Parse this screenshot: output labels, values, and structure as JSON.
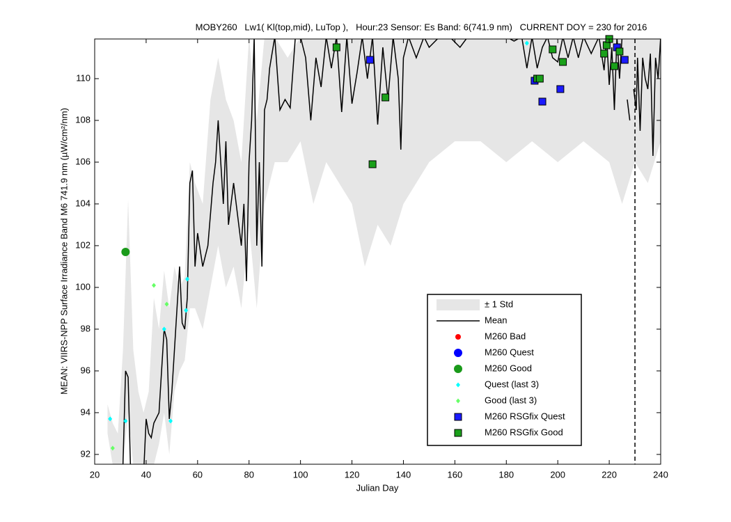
{
  "chart_data": {
    "type": "scatter",
    "title": "MOBY260   Lw1( Kl(top,mid), LuTop ),   Hour:23 Sensor: Es Band: 6(741.9 nm)   CURRENT DOY = 230 for 2016",
    "x_label": "Julian Day",
    "y_label": "MEAN: VIIRS-NPP Surface Irradiance Band M6 741.9 nm (µW/cm²/nm)",
    "xlim": [
      20,
      240
    ],
    "ylim": [
      91.53,
      111.9
    ],
    "xticks": [
      20,
      40,
      60,
      80,
      100,
      120,
      140,
      160,
      180,
      200,
      220,
      240
    ],
    "yticks": [
      92,
      94,
      96,
      98,
      100,
      102,
      104,
      106,
      108,
      110
    ],
    "current_doy": 230,
    "legend": "lower right",
    "series": [
      {
        "name": "± 1 Std",
        "kind": "band",
        "color": "#e6e6e6",
        "x": [
          25,
          27,
          29,
          31,
          33,
          35,
          37,
          39,
          41,
          43,
          45,
          47,
          49,
          51,
          53,
          55,
          57,
          59,
          62,
          65,
          68,
          71,
          74,
          77,
          80,
          83,
          86,
          90,
          95,
          100,
          105,
          110,
          115,
          120,
          125,
          130,
          135,
          140,
          150,
          160,
          170,
          180,
          190,
          200,
          210,
          220,
          225,
          230,
          235,
          240
        ],
        "lower": [
          93.0,
          91.5,
          91.5,
          91.5,
          94,
          91.5,
          91.5,
          91.5,
          91.5,
          91.5,
          92.5,
          94,
          92,
          95,
          96,
          96.5,
          99,
          99,
          98,
          100,
          102,
          100,
          101,
          99,
          103,
          99,
          104,
          106,
          106,
          107,
          104,
          106,
          105,
          104,
          101,
          103,
          102,
          104,
          106,
          107,
          107,
          106,
          107,
          106,
          107,
          106,
          104,
          106,
          105,
          107
        ],
        "upper": [
          94.4,
          93.5,
          93,
          97,
          104.2,
          97,
          95,
          94,
          95,
          99.5,
          98,
          100.8,
          99,
          101,
          100,
          100.5,
          106,
          105,
          104,
          109,
          111,
          109,
          108,
          106,
          112,
          108,
          112,
          112,
          111,
          112,
          112,
          112,
          112,
          112,
          112,
          112,
          112,
          112,
          112,
          112,
          112,
          112,
          112,
          112,
          112,
          112,
          112,
          112,
          112,
          112
        ]
      },
      {
        "name": "Mean",
        "kind": "line",
        "color": "#000000",
        "x": [
          31,
          32,
          33,
          34,
          39,
          40,
          41,
          42,
          43,
          45,
          47,
          48,
          49,
          50,
          52,
          53,
          54,
          55,
          56,
          57,
          58,
          59,
          60,
          62,
          64,
          66,
          67,
          68,
          69,
          70,
          71,
          72,
          74,
          76,
          77,
          78,
          79,
          80,
          81,
          82,
          83,
          84,
          85,
          86,
          87,
          88,
          90,
          92,
          94,
          96,
          98,
          100,
          102,
          104,
          106,
          108,
          110,
          112,
          114,
          116,
          118,
          120,
          122,
          124,
          126,
          128,
          130,
          132,
          134,
          136,
          138,
          139,
          140,
          142,
          145,
          148,
          150,
          154,
          158,
          162,
          165,
          170,
          175,
          180,
          183,
          186,
          188,
          190,
          192,
          194,
          196,
          198,
          200,
          202,
          204,
          206,
          208,
          210,
          213,
          216,
          218,
          219,
          220,
          221,
          222,
          223,
          224,
          225,
          226,
          227,
          228,
          229,
          229.5,
          230.5,
          231,
          232,
          233,
          234,
          235,
          236,
          237,
          238,
          239,
          240
        ],
        "values": [
          91.5,
          96,
          95.7,
          91,
          91,
          93.7,
          93,
          92.8,
          93.5,
          94,
          98,
          97.5,
          93.7,
          95,
          99,
          101,
          98.3,
          98,
          99.5,
          105,
          105.6,
          101,
          102.6,
          101,
          102,
          105,
          106,
          108,
          106,
          104,
          107,
          103,
          105,
          103,
          102,
          104,
          100.3,
          106,
          108,
          112,
          102,
          106,
          101,
          108.5,
          109,
          110.5,
          112,
          108.5,
          109,
          108.6,
          112,
          112,
          111,
          108,
          111,
          109.6,
          112,
          110.5,
          112,
          108.4,
          112,
          108.8,
          110.3,
          112,
          110,
          112,
          107.8,
          111.5,
          109,
          112,
          110,
          106.6,
          111,
          112,
          111,
          112,
          111.5,
          112,
          112,
          111.5,
          112,
          112,
          112,
          112,
          111.8,
          112,
          110.5,
          112,
          110.5,
          111.5,
          112,
          111,
          110.8,
          112,
          111,
          112,
          111,
          112,
          111.2,
          112,
          110.4,
          112,
          109.7,
          111.5,
          108.5,
          112,
          110,
          112,
          null,
          109,
          108,
          null,
          109.5,
          108.5,
          111,
          107.5,
          111,
          110,
          109.5,
          111.2,
          106.3,
          111,
          110,
          112
        ]
      },
      {
        "name": "M260 Bad",
        "kind": "scatter",
        "marker": "dot",
        "color": "#ff0000",
        "x": [],
        "values": []
      },
      {
        "name": "M260 Quest",
        "kind": "scatter",
        "marker": "circle",
        "color": "#0000ff",
        "x": [],
        "values": []
      },
      {
        "name": "M260 Good",
        "kind": "scatter",
        "marker": "circle",
        "color": "#1a9a1a",
        "x": [
          32
        ],
        "values": [
          101.7
        ]
      },
      {
        "name": "Quest (last 3)",
        "kind": "scatter",
        "marker": "diamond",
        "color": "#00ffff",
        "x": [
          26,
          32,
          47,
          49.5,
          55.5,
          56,
          188
        ],
        "values": [
          93.7,
          93.6,
          98,
          93.6,
          98.9,
          100.4,
          111.7
        ]
      },
      {
        "name": "Good (last 3)",
        "kind": "scatter",
        "marker": "diamond",
        "color": "#66ff66",
        "x": [
          27,
          43,
          48
        ],
        "values": [
          92.3,
          100.1,
          99.2
        ]
      },
      {
        "name": "M260 RSGfix Quest",
        "kind": "scatter",
        "marker": "square",
        "color": "#1a1aff",
        "x": [
          127,
          191,
          194,
          201,
          223,
          226
        ],
        "values": [
          110.9,
          109.9,
          108.9,
          109.5,
          111.5,
          110.9
        ]
      },
      {
        "name": "M260 RSGfix Good",
        "kind": "scatter",
        "marker": "square",
        "color": "#1aa01a",
        "x": [
          114,
          128,
          133,
          192,
          193,
          198,
          202,
          218,
          219,
          220,
          222,
          224
        ],
        "values": [
          111.5,
          105.9,
          109.1,
          110,
          110,
          111.4,
          110.8,
          111.2,
          111.6,
          111.9,
          110.6,
          111.3
        ]
      }
    ]
  }
}
